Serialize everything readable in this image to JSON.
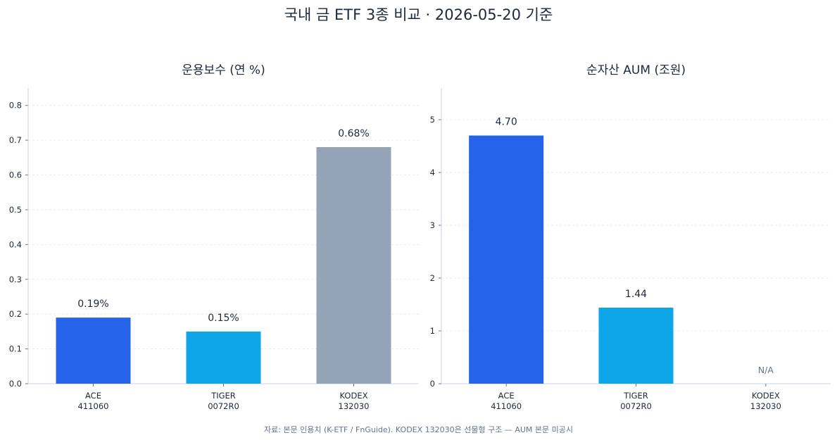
{
  "title": "국내 금 ETF 3종 비교 · 2026-05-20 기준",
  "footnote": "자료: 본문 인용치 (K-ETF / FnGuide). KODEX 132030은 선물형 구조 — AUM 본문 미공시",
  "colors": {
    "ACE": "#2563eb",
    "TIGER": "#0ea5e9",
    "KODEX": "#94a3b8"
  },
  "chart_data": [
    {
      "type": "bar",
      "title": "운용보수 (연 %)",
      "categories": [
        {
          "name": "ACE",
          "code": "411060"
        },
        {
          "name": "TIGER",
          "code": "0072R0"
        },
        {
          "name": "KODEX",
          "code": "132030"
        }
      ],
      "values": [
        0.19,
        0.15,
        0.68
      ],
      "value_labels": [
        "0.19%",
        "0.15%",
        "0.68%"
      ],
      "ylim": [
        0,
        0.85
      ],
      "yticks": [
        "0.0",
        "0.1",
        "0.2",
        "0.3",
        "0.4",
        "0.5",
        "0.6",
        "0.7",
        "0.8"
      ],
      "grid": true
    },
    {
      "type": "bar",
      "title": "순자산 AUM (조원)",
      "categories": [
        {
          "name": "ACE",
          "code": "411060"
        },
        {
          "name": "TIGER",
          "code": "0072R0"
        },
        {
          "name": "KODEX",
          "code": "132030"
        }
      ],
      "values": [
        4.7,
        1.44,
        null
      ],
      "value_labels": [
        "4.70",
        "1.44",
        "N/A"
      ],
      "ylim": [
        0,
        5.6
      ],
      "yticks": [
        "0",
        "1",
        "2",
        "3",
        "4",
        "5"
      ],
      "grid": true
    }
  ]
}
